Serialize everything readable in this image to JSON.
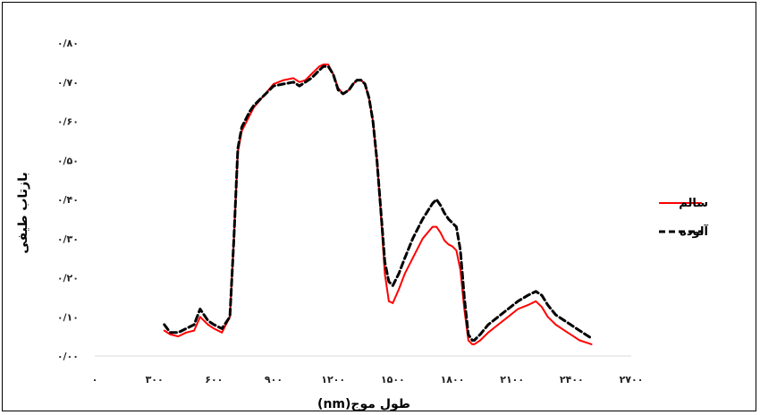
{
  "chart_data": {
    "type": "line",
    "xlabel": "طول موج(nm)",
    "ylabel": "بازتاب طیفی",
    "xlim": [
      0,
      2700
    ],
    "ylim": [
      0,
      0.8
    ],
    "x_ticks": [
      {
        "value": 0,
        "label": "۰"
      },
      {
        "value": 300,
        "label": "۳۰۰"
      },
      {
        "value": 600,
        "label": "۶۰۰"
      },
      {
        "value": 900,
        "label": "۹۰۰"
      },
      {
        "value": 1200,
        "label": "۱۲۰۰"
      },
      {
        "value": 1500,
        "label": "۱۵۰۰"
      },
      {
        "value": 1800,
        "label": "۱۸۰۰"
      },
      {
        "value": 2100,
        "label": "۲۱۰۰"
      },
      {
        "value": 2400,
        "label": "۲۴۰۰"
      },
      {
        "value": 2700,
        "label": "۲۷۰۰"
      }
    ],
    "y_ticks": [
      {
        "value": 0.0,
        "label": "۰/۰۰"
      },
      {
        "value": 0.1,
        "label": "۰/۱۰"
      },
      {
        "value": 0.2,
        "label": "۰/۲۰"
      },
      {
        "value": 0.3,
        "label": "۰/۳۰"
      },
      {
        "value": 0.4,
        "label": "۰/۴۰"
      },
      {
        "value": 0.5,
        "label": "۰/۵۰"
      },
      {
        "value": 0.6,
        "label": "۰/۶۰"
      },
      {
        "value": 0.7,
        "label": "۰/۷۰"
      },
      {
        "value": 0.8,
        "label": "۰/۸۰"
      }
    ],
    "grid": false,
    "legend_position": "right",
    "series": [
      {
        "name": "سالم",
        "color": "#ff0000",
        "style": "solid",
        "x": [
          350,
          380,
          420,
          460,
          500,
          530,
          550,
          570,
          600,
          640,
          680,
          700,
          720,
          740,
          760,
          780,
          800,
          850,
          900,
          950,
          1000,
          1030,
          1060,
          1090,
          1110,
          1130,
          1150,
          1175,
          1200,
          1225,
          1250,
          1280,
          1300,
          1320,
          1340,
          1360,
          1380,
          1400,
          1420,
          1440,
          1460,
          1480,
          1500,
          1530,
          1560,
          1600,
          1650,
          1700,
          1720,
          1740,
          1760,
          1780,
          1800,
          1820,
          1840,
          1860,
          1880,
          1900,
          1910,
          1940,
          1980,
          2030,
          2080,
          2130,
          2180,
          2220,
          2250,
          2280,
          2320,
          2380,
          2440,
          2500
        ],
        "y": [
          0.065,
          0.055,
          0.05,
          0.06,
          0.065,
          0.1,
          0.09,
          0.08,
          0.07,
          0.06,
          0.1,
          0.3,
          0.52,
          0.575,
          0.595,
          0.615,
          0.635,
          0.665,
          0.695,
          0.705,
          0.71,
          0.7,
          0.705,
          0.72,
          0.73,
          0.74,
          0.745,
          0.745,
          0.72,
          0.685,
          0.67,
          0.68,
          0.695,
          0.705,
          0.705,
          0.695,
          0.66,
          0.6,
          0.5,
          0.36,
          0.21,
          0.14,
          0.135,
          0.17,
          0.21,
          0.25,
          0.3,
          0.33,
          0.33,
          0.315,
          0.295,
          0.285,
          0.28,
          0.27,
          0.22,
          0.12,
          0.04,
          0.03,
          0.03,
          0.04,
          0.06,
          0.08,
          0.1,
          0.12,
          0.13,
          0.14,
          0.125,
          0.1,
          0.08,
          0.06,
          0.04,
          0.03
        ]
      },
      {
        "name": "آلوده",
        "color": "#000000",
        "style": "dashed",
        "x": [
          350,
          380,
          420,
          460,
          500,
          530,
          550,
          570,
          600,
          640,
          680,
          700,
          720,
          740,
          760,
          780,
          800,
          850,
          900,
          950,
          1000,
          1030,
          1060,
          1090,
          1110,
          1130,
          1150,
          1175,
          1200,
          1225,
          1250,
          1280,
          1300,
          1320,
          1340,
          1360,
          1380,
          1400,
          1420,
          1440,
          1460,
          1480,
          1500,
          1530,
          1560,
          1600,
          1650,
          1700,
          1720,
          1740,
          1760,
          1780,
          1800,
          1820,
          1840,
          1860,
          1880,
          1900,
          1910,
          1940,
          1980,
          2030,
          2080,
          2130,
          2180,
          2220,
          2250,
          2280,
          2320,
          2380,
          2440,
          2500
        ],
        "y": [
          0.08,
          0.06,
          0.06,
          0.07,
          0.08,
          0.12,
          0.105,
          0.09,
          0.08,
          0.07,
          0.1,
          0.3,
          0.53,
          0.585,
          0.605,
          0.625,
          0.64,
          0.665,
          0.69,
          0.695,
          0.7,
          0.69,
          0.7,
          0.71,
          0.72,
          0.73,
          0.74,
          0.74,
          0.72,
          0.68,
          0.67,
          0.68,
          0.695,
          0.705,
          0.705,
          0.695,
          0.66,
          0.6,
          0.5,
          0.37,
          0.24,
          0.19,
          0.18,
          0.21,
          0.25,
          0.3,
          0.35,
          0.39,
          0.4,
          0.385,
          0.365,
          0.35,
          0.34,
          0.33,
          0.27,
          0.15,
          0.055,
          0.04,
          0.04,
          0.055,
          0.08,
          0.1,
          0.12,
          0.14,
          0.155,
          0.165,
          0.155,
          0.13,
          0.105,
          0.085,
          0.065,
          0.045
        ]
      }
    ]
  }
}
